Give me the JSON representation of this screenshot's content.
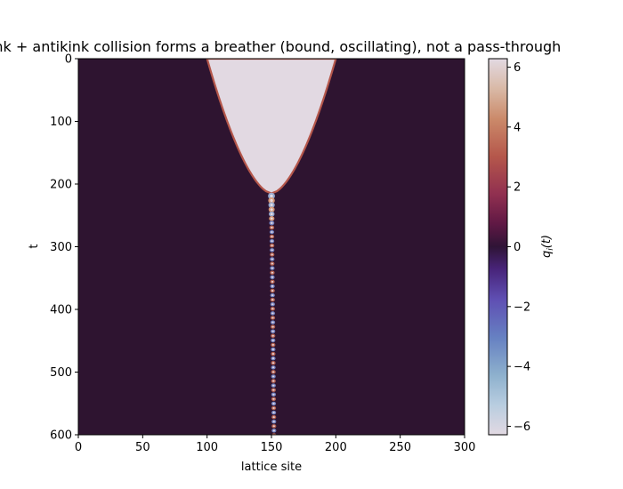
{
  "chart_data": {
    "type": "heatmap",
    "title": "kink + antikink collision forms a breather (bound, oscillating), not a pass-through",
    "xlabel": "lattice site",
    "ylabel": "t",
    "xlim": [
      0,
      300
    ],
    "ylim": [
      600,
      0
    ],
    "xticks": [
      0,
      50,
      100,
      150,
      200,
      250,
      300
    ],
    "yticks": [
      0,
      100,
      200,
      300,
      400,
      500,
      600
    ],
    "colorbar": {
      "label": "q_i(t)",
      "range": [
        -6.2832,
        6.2832
      ],
      "ticks": [
        -6,
        -4,
        -2,
        0,
        2,
        4,
        6
      ],
      "colormap": "twilight_shifted"
    },
    "field": {
      "background_value": 0,
      "kink_plateau_value": -6.2832,
      "kink_initial_left_edge": 100,
      "kink_initial_right_edge": 200,
      "collision_site": 150,
      "collision_time": 215,
      "breather_site": 150,
      "breather_time_range": [
        215,
        600
      ],
      "breather_drift_to_site": 152
    }
  }
}
